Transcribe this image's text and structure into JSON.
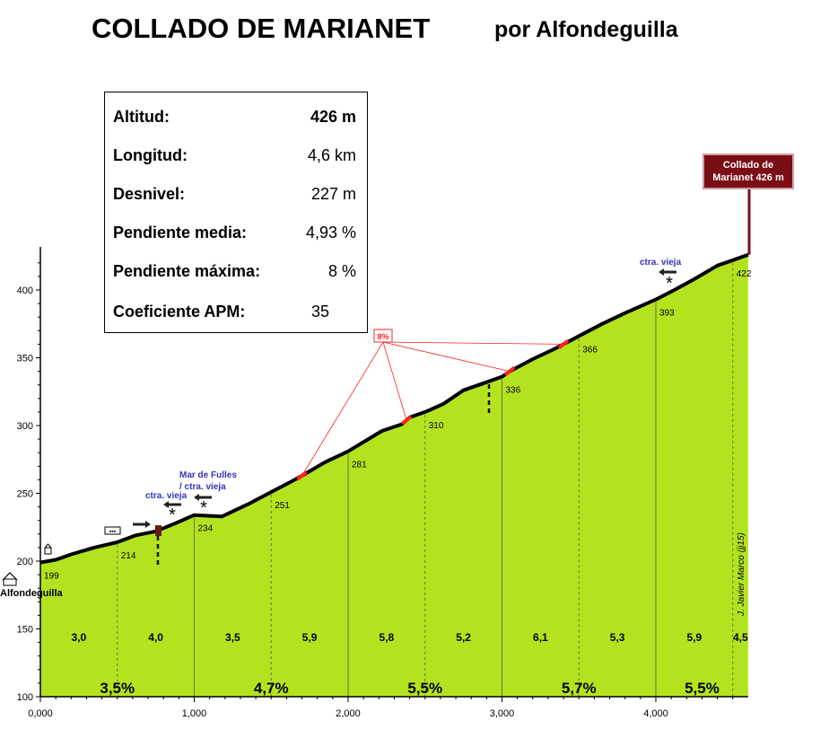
{
  "title": "COLLADO DE MARIANET",
  "subtitle": "por Alfondeguilla",
  "stats": [
    {
      "label": "Altitud:",
      "value": "426 m"
    },
    {
      "label": "Longitud:",
      "value": "4,6 km"
    },
    {
      "label": "Desnivel:",
      "value": "227 m"
    },
    {
      "label": "Pendiente media:",
      "value": "4,93 %"
    },
    {
      "label": "Pendiente máxima:",
      "value": "8 %"
    },
    {
      "label": "Coeficiente APM:",
      "value": "35"
    }
  ],
  "summit": {
    "line1": "Collado de",
    "line2": "Marianet   426 m"
  },
  "start_label": "Alfondeguilla",
  "author": "J. Javier Marco (jj15)",
  "max_label": "8%",
  "road_labels": [
    {
      "text": "ctra. vieja"
    },
    {
      "text": "Mar de Fulles"
    },
    {
      "text": "/ ctra. vieja"
    },
    {
      "text": "ctra. vieja"
    }
  ],
  "colors": {
    "fill": "#b3e31f",
    "profile": "#000000",
    "steep": "#ff2020",
    "summit_box": "#7b0d16",
    "road_text": "#3333bb"
  },
  "chart_data": {
    "type": "area",
    "xlim": [
      0,
      4.6
    ],
    "ylim": [
      100,
      430
    ],
    "x_ticks": [
      0,
      1,
      2,
      3,
      4
    ],
    "x_tick_labels": [
      "0,000",
      "1,000",
      "2,000",
      "3,000",
      "4,000"
    ],
    "y_ticks": [
      100,
      150,
      200,
      250,
      300,
      350,
      400
    ],
    "y_tick_labels": [
      "100",
      "150",
      "200",
      "250",
      "300",
      "350",
      "400"
    ],
    "profile": [
      {
        "x": 0,
        "y": 199
      },
      {
        "x": 0.1,
        "y": 201
      },
      {
        "x": 0.2,
        "y": 205
      },
      {
        "x": 0.35,
        "y": 210
      },
      {
        "x": 0.5,
        "y": 214
      },
      {
        "x": 0.62,
        "y": 219
      },
      {
        "x": 0.75,
        "y": 222
      },
      {
        "x": 0.88,
        "y": 228
      },
      {
        "x": 1.0,
        "y": 234
      },
      {
        "x": 1.18,
        "y": 233
      },
      {
        "x": 1.35,
        "y": 242
      },
      {
        "x": 1.5,
        "y": 251
      },
      {
        "x": 1.62,
        "y": 258
      },
      {
        "x": 1.7,
        "y": 263
      },
      {
        "x": 1.85,
        "y": 273
      },
      {
        "x": 2.0,
        "y": 281
      },
      {
        "x": 2.22,
        "y": 296
      },
      {
        "x": 2.35,
        "y": 301
      },
      {
        "x": 2.4,
        "y": 306
      },
      {
        "x": 2.5,
        "y": 310
      },
      {
        "x": 2.62,
        "y": 316
      },
      {
        "x": 2.75,
        "y": 326
      },
      {
        "x": 2.85,
        "y": 330
      },
      {
        "x": 3.0,
        "y": 336
      },
      {
        "x": 3.05,
        "y": 340
      },
      {
        "x": 3.2,
        "y": 349
      },
      {
        "x": 3.35,
        "y": 357
      },
      {
        "x": 3.5,
        "y": 366
      },
      {
        "x": 3.65,
        "y": 375
      },
      {
        "x": 3.8,
        "y": 383
      },
      {
        "x": 4.0,
        "y": 393
      },
      {
        "x": 4.12,
        "y": 400
      },
      {
        "x": 4.25,
        "y": 408
      },
      {
        "x": 4.4,
        "y": 418
      },
      {
        "x": 4.5,
        "y": 422
      },
      {
        "x": 4.6,
        "y": 426
      }
    ],
    "point_labels": [
      {
        "x": 0,
        "y": 199,
        "label": "199"
      },
      {
        "x": 0.5,
        "y": 214,
        "label": "214"
      },
      {
        "x": 1.0,
        "y": 234,
        "label": "234"
      },
      {
        "x": 1.5,
        "y": 251,
        "label": "251"
      },
      {
        "x": 2.0,
        "y": 281,
        "label": "281"
      },
      {
        "x": 2.5,
        "y": 310,
        "label": "310"
      },
      {
        "x": 3.0,
        "y": 336,
        "label": "336"
      },
      {
        "x": 3.5,
        "y": 366,
        "label": "366"
      },
      {
        "x": 4.0,
        "y": 393,
        "label": "393"
      },
      {
        "x": 4.5,
        "y": 422,
        "label": "422"
      }
    ],
    "segment_slopes": [
      {
        "x_mid": 0.25,
        "label": "3,0"
      },
      {
        "x_mid": 0.75,
        "label": "4,0"
      },
      {
        "x_mid": 1.25,
        "label": "3,5"
      },
      {
        "x_mid": 1.75,
        "label": "5,9"
      },
      {
        "x_mid": 2.25,
        "label": "5,8"
      },
      {
        "x_mid": 2.75,
        "label": "5,2"
      },
      {
        "x_mid": 3.25,
        "label": "6,1"
      },
      {
        "x_mid": 3.75,
        "label": "5,3"
      },
      {
        "x_mid": 4.25,
        "label": "5,9"
      },
      {
        "x_mid": 4.55,
        "label": "4,5"
      }
    ],
    "km_slopes": [
      {
        "x_mid": 0.5,
        "label": "3,5%"
      },
      {
        "x_mid": 1.5,
        "label": "4,7%"
      },
      {
        "x_mid": 2.5,
        "label": "5,5%"
      },
      {
        "x_mid": 3.5,
        "label": "5,7%"
      },
      {
        "x_mid": 4.3,
        "label": "5,5%"
      }
    ],
    "steep_points": [
      {
        "x": 1.7,
        "y": 263
      },
      {
        "x": 2.38,
        "y": 304
      },
      {
        "x": 3.05,
        "y": 340
      },
      {
        "x": 3.4,
        "y": 360
      }
    ]
  }
}
